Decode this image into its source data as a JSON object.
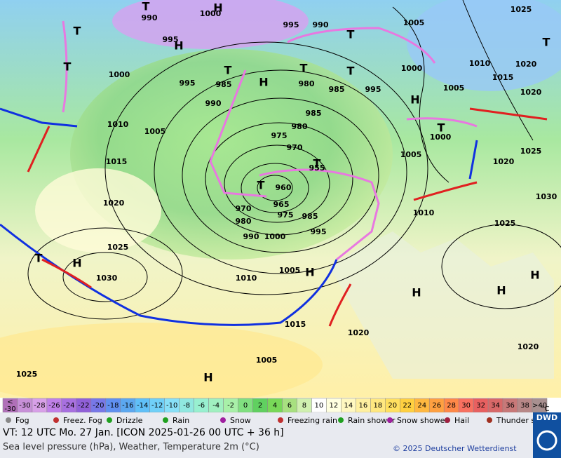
{
  "header": {
    "valid_time": "VT: 12 UTC Mo.  27 Jan. [ICON 2025-01-26  00 UTC + 36 h]",
    "subtitle": "Sea level pressure (hPa), Weather, Temperature 2m (°C)",
    "copyright": "© 2025 Deutscher Wetterdienst",
    "logo": "DWD"
  },
  "map": {
    "pressure_labels": [
      "990",
      "1000",
      "995",
      "995",
      "990",
      "1005",
      "1025",
      "1000",
      "995",
      "985",
      "980",
      "985",
      "995",
      "1000",
      "1010",
      "1020",
      "1015",
      "1005",
      "1020",
      "990",
      "985",
      "1010",
      "1005",
      "980",
      "975",
      "970",
      "1000",
      "1025",
      "1005",
      "1020",
      "1015",
      "955",
      "960",
      "1020",
      "965",
      "970",
      "975",
      "985",
      "980",
      "1010",
      "1030",
      "995",
      "1025",
      "1000",
      "990",
      "1025",
      "1005",
      "1030",
      "1010",
      "1015",
      "1020",
      "1020",
      "1005",
      "1025"
    ],
    "highs": [
      "H",
      "H",
      "H",
      "H",
      "H",
      "H",
      "H",
      "H",
      "H",
      "H"
    ],
    "troughs": [
      "T",
      "T",
      "T",
      "T",
      "T",
      "T",
      "T",
      "T",
      "T",
      "T",
      "T",
      "T"
    ]
  },
  "colorbar": {
    "labels": [
      "<",
      "-30",
      "-28",
      "-26",
      "-24",
      "-22",
      "-20",
      "-18",
      "-16",
      "-14",
      "-12",
      "-10",
      "-8",
      "-6",
      "-4",
      "-2",
      "0",
      "2",
      "4",
      "6",
      "8",
      "10",
      "12",
      "14",
      "16",
      "18",
      "20",
      "22",
      "24",
      "26",
      "28",
      "30",
      "32",
      "34",
      "36",
      "38",
      ">40"
    ],
    "unit": "°C",
    "first_value": "-30",
    "colors": [
      "#b070b8",
      "#c890d8",
      "#d8a0e8",
      "#c080e8",
      "#a870e0",
      "#9060d8",
      "#7878e8",
      "#6090f0",
      "#5ca8f0",
      "#60c0f8",
      "#70d0f8",
      "#88e0f8",
      "#90e8e0",
      "#98f0d0",
      "#a0f0c0",
      "#a8f0a8",
      "#80e080",
      "#60d060",
      "#78d858",
      "#a8e080",
      "#d0f0b0",
      "#ffffff",
      "#ffffe0",
      "#fff8c0",
      "#fff0a0",
      "#ffe880",
      "#ffe060",
      "#ffd040",
      "#ffb840",
      "#ffa040",
      "#ff8848",
      "#f87060",
      "#e86060",
      "#d86868",
      "#c87878",
      "#b88888",
      "#a89090"
    ]
  },
  "legend": [
    "Fog",
    "Freez. Fog",
    "Drizzle",
    "Rain",
    "Snow",
    "Freezing rain",
    "Rain shower",
    "Snow shower",
    "Hail",
    "Thunder storm"
  ]
}
